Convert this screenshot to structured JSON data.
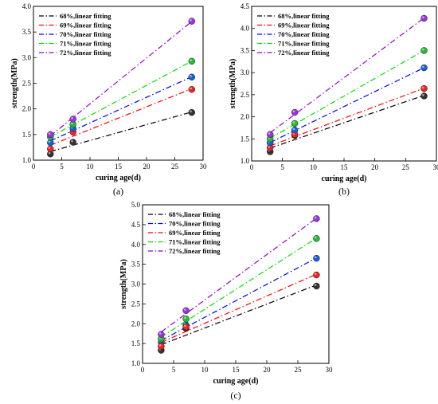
{
  "chart_data": [
    {
      "type": "scatter",
      "caption": "(a)",
      "xlabel": "curing age(d)",
      "ylabel": "strength(MPa)",
      "xlim": [
        0,
        30
      ],
      "ylim": [
        1.0,
        4.0
      ],
      "xticks": [
        "0",
        "5",
        "10",
        "15",
        "20",
        "25",
        "30"
      ],
      "yticks": [
        "1.0",
        "1.5",
        "2.0",
        "2.5",
        "3.0",
        "3.5",
        "4.0"
      ],
      "legend_position": "top-left",
      "x": [
        3,
        7,
        28
      ],
      "series": [
        {
          "name": "68%,linear fitting",
          "color": "#000000",
          "marker_color": "#333333",
          "values": [
            1.12,
            1.35,
            1.93
          ]
        },
        {
          "name": "69%,linear fitting",
          "color": "#ff0000",
          "marker_color": "#ee2222",
          "values": [
            1.22,
            1.55,
            2.38
          ]
        },
        {
          "name": "70%,linear fitting",
          "color": "#0000ff",
          "marker_color": "#1a5fd6",
          "values": [
            1.34,
            1.62,
            2.62
          ]
        },
        {
          "name": "71%,linear fitting",
          "color": "#00dd00",
          "marker_color": "#22bb33",
          "values": [
            1.45,
            1.7,
            2.93
          ]
        },
        {
          "name": "72%,linear fitting",
          "color": "#9900cc",
          "marker_color": "#9933dd",
          "values": [
            1.5,
            1.8,
            3.71
          ]
        }
      ]
    },
    {
      "type": "scatter",
      "caption": "(b)",
      "xlabel": "curing age(d)",
      "ylabel": "strength(MPa)",
      "xlim": [
        0,
        30
      ],
      "ylim": [
        1.0,
        4.5
      ],
      "xticks": [
        "0",
        "5",
        "10",
        "15",
        "20",
        "25",
        "30"
      ],
      "yticks": [
        "1.0",
        "1.5",
        "2.0",
        "2.5",
        "3.0",
        "3.5",
        "4.0",
        "4.5"
      ],
      "legend_position": "top-left",
      "x": [
        3,
        7,
        28
      ],
      "series": [
        {
          "name": "68%,linear fitting",
          "color": "#000000",
          "marker_color": "#333333",
          "values": [
            1.21,
            1.58,
            2.47
          ]
        },
        {
          "name": "69%,linear fitting",
          "color": "#ff0000",
          "marker_color": "#ee2222",
          "values": [
            1.3,
            1.6,
            2.64
          ]
        },
        {
          "name": "70%,linear fitting",
          "color": "#0000ff",
          "marker_color": "#1a5fd6",
          "values": [
            1.41,
            1.7,
            3.11
          ]
        },
        {
          "name": "71%,linear fitting",
          "color": "#00dd00",
          "marker_color": "#22bb33",
          "values": [
            1.5,
            1.85,
            3.5
          ]
        },
        {
          "name": "72%,linear fitting",
          "color": "#9900cc",
          "marker_color": "#9933dd",
          "values": [
            1.6,
            2.1,
            4.23
          ]
        }
      ]
    },
    {
      "type": "scatter",
      "caption": "(c)",
      "xlabel": "curing age(d)",
      "ylabel": "strength(MPa)",
      "xlim": [
        0,
        30
      ],
      "ylim": [
        1.0,
        5.0
      ],
      "xticks": [
        "0",
        "5",
        "10",
        "15",
        "20",
        "25",
        "30"
      ],
      "yticks": [
        "1.0",
        "1.5",
        "2.0",
        "2.5",
        "3.0",
        "3.5",
        "4.0",
        "4.5",
        "5.0"
      ],
      "legend_position": "top-left",
      "x": [
        3,
        7,
        28
      ],
      "series": [
        {
          "name": "68%,linear fitting",
          "color": "#000000",
          "marker_color": "#333333",
          "values": [
            1.33,
            1.88,
            2.95
          ]
        },
        {
          "name": "70%,linear fitting",
          "color": "#0000ff",
          "marker_color": "#1a5fd6",
          "values": [
            1.53,
            1.97,
            3.65
          ]
        },
        {
          "name": "69%,linear fitting",
          "color": "#ff0000",
          "marker_color": "#ee2222",
          "values": [
            1.43,
            1.92,
            3.23
          ]
        },
        {
          "name": "71%,linear fitting",
          "color": "#00dd00",
          "marker_color": "#22bb33",
          "values": [
            1.62,
            2.12,
            4.15
          ]
        },
        {
          "name": "72%,linear fitting",
          "color": "#9900cc",
          "marker_color": "#9933dd",
          "values": [
            1.73,
            2.33,
            4.65
          ]
        }
      ]
    }
  ]
}
